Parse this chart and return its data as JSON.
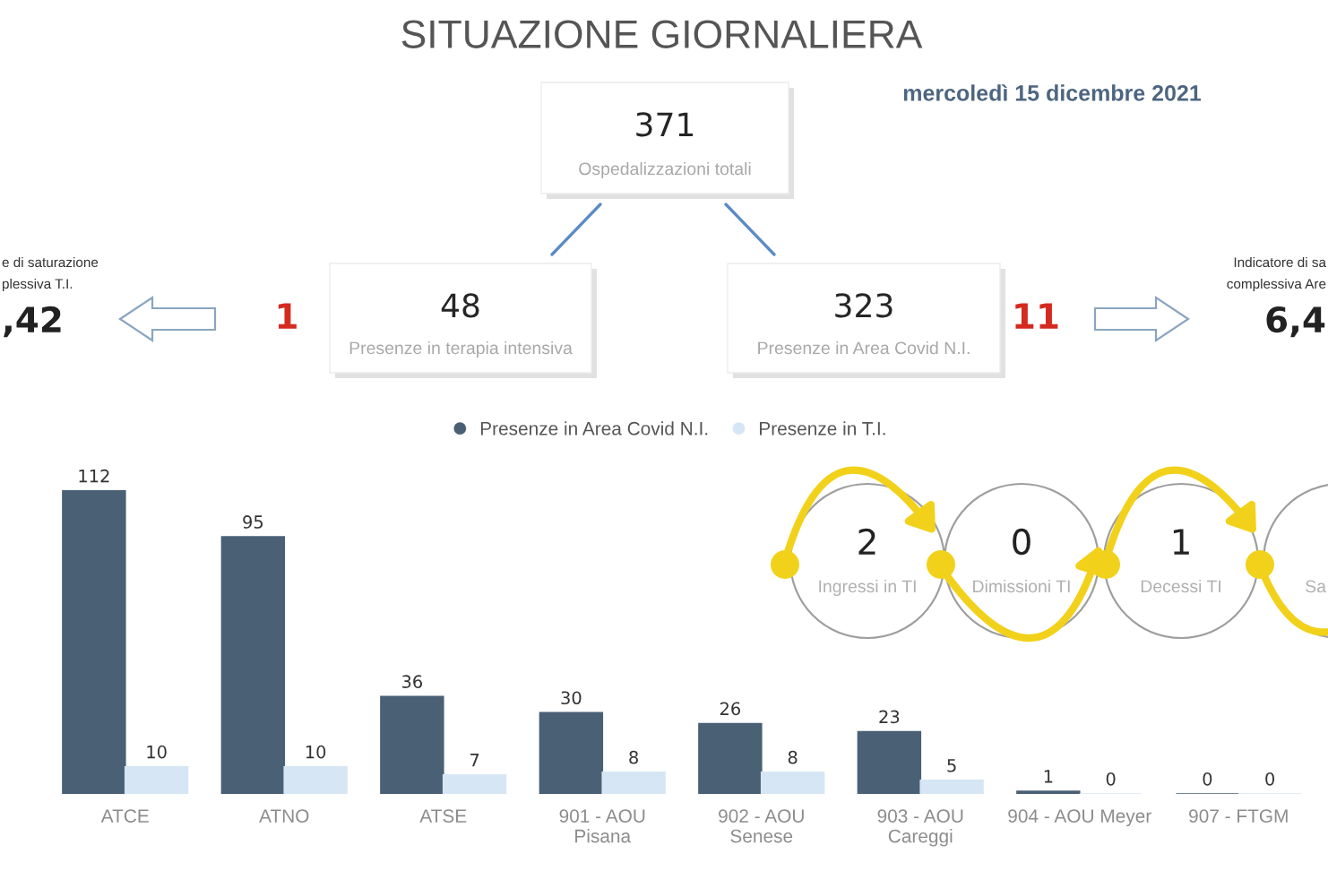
{
  "chart_data": {
    "type": "bar",
    "title": "SITUAZIONE GIORNALIERA",
    "subtitle": "mercoledì 15 dicembre 2021",
    "categories": [
      "ATCE",
      "ATNO",
      "ATSE",
      "901 - AOU\nPisana",
      "902 - AOU\nSenese",
      "903 - AOU\nCareggi",
      "904 - AOU Meyer",
      "907 - FTGM"
    ],
    "series": [
      {
        "name": "Presenze in Area Covid N.I.",
        "color": "#4a6075",
        "values": [
          112,
          95,
          36,
          30,
          26,
          23,
          1,
          0
        ]
      },
      {
        "name": "Presenze in T.I.",
        "color": "#d6e6f5",
        "values": [
          10,
          10,
          7,
          8,
          8,
          5,
          0,
          0
        ]
      }
    ],
    "data_labels": true,
    "legend": "top",
    "tick_labels": "x",
    "annotations": [
      "371",
      "Ospedalizzazioni totali",
      "e di saturazione",
      "plessiva T.I.",
      ",42",
      "1",
      "48",
      "Presenze in terapia intensiva",
      "323",
      "Presenze in Area Covid N.I.",
      "11",
      "Indicatore di sa",
      "complessiva Are",
      "6,4",
      "2",
      "Ingressi in TI",
      "0",
      "Dimissioni TI",
      "1",
      "Decessi TI",
      "Sa"
    ]
  }
}
